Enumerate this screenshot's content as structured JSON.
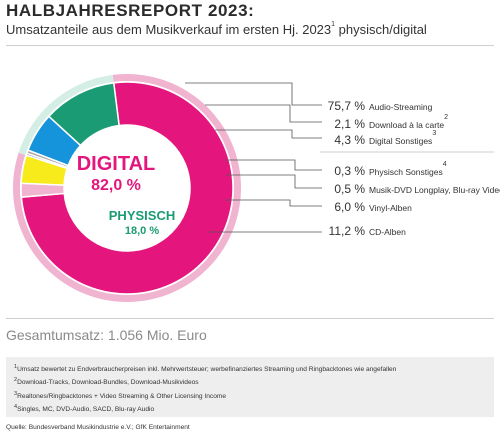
{
  "header": {
    "title": "HALBJAHRESREPORT 2023:",
    "subtitle": "Umsatzanteile aus dem Musikverkauf im ersten Hj. 2023",
    "subtitle_sup": "1",
    "subtitle_suffix": " physisch/digital"
  },
  "colors": {
    "digital": "#e4167e",
    "physical": "#1b9b73",
    "digital_light": "#f0b3d0",
    "physical_light": "#d5eee5",
    "rule": "#cfcfcf"
  },
  "chart_data": {
    "type": "pie",
    "style": "donut",
    "groups": [
      {
        "name": "DIGITAL",
        "value": 82.0,
        "label": "82,0 %"
      },
      {
        "name": "PHYSISCH",
        "value": 18.0,
        "label": "18,0 %"
      }
    ],
    "slices": [
      {
        "label": "Audio-Streaming",
        "sup": "",
        "value": 75.7,
        "value_label": "75,7 %",
        "group": "digital",
        "color": "#e4167e"
      },
      {
        "label": "Download à la carte",
        "sup": "2",
        "value": 2.1,
        "value_label": "2,1 %",
        "group": "digital",
        "color": "#f0b3d0"
      },
      {
        "label": "Digital Sonstiges",
        "sup": "3",
        "value": 4.3,
        "value_label": "4,3 %",
        "group": "digital",
        "color": "#f7eb1c"
      },
      {
        "label": "Physisch Sonstiges",
        "sup": "4",
        "value": 0.3,
        "value_label": "0,3 %",
        "group": "physical",
        "color": "#3d4f8a"
      },
      {
        "label": "Musik-DVD Longplay, Blu-ray Video",
        "sup": "",
        "value": 0.5,
        "value_label": "0,5 %",
        "group": "physical",
        "color": "#a8a8a8"
      },
      {
        "label": "Vinyl-Alben",
        "sup": "",
        "value": 6.0,
        "value_label": "6,0 %",
        "group": "physical",
        "color": "#1593db"
      },
      {
        "label": "CD-Alben",
        "sup": "",
        "value": 11.2,
        "value_label": "11,2 %",
        "group": "physical",
        "color": "#1b9b73"
      }
    ]
  },
  "total": "Gesamtumsatz: 1.056 Mio. Euro",
  "footnotes": [
    {
      "sup": "1",
      "text": "Umsatz bewertet zu Endverbraucherpreisen inkl. Mehrwertsteuer; werbefinanziertes Streaming und Ringbacktones wie angefallen"
    },
    {
      "sup": "2",
      "text": "Download-Tracks, Download-Bundles, Download-Musikvideos"
    },
    {
      "sup": "3",
      "text": "Realtones/Ringbacktones + Video Streaming & Other Licensing Income"
    },
    {
      "sup": "4",
      "text": "Singles, MC, DVD-Audio, SACD, Blu-ray Audio"
    }
  ],
  "source": "Quelle: Bundesverband Musikindustrie e.V.; GfK Entertainment"
}
